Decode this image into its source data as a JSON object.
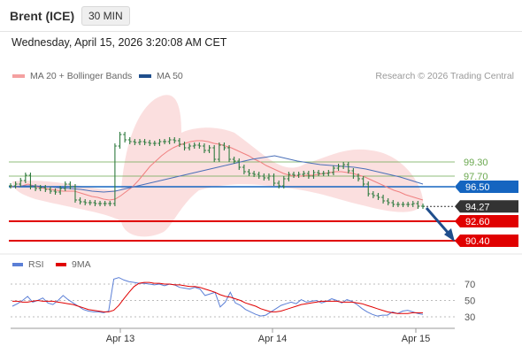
{
  "header": {
    "instrument": "Brent (ICE)",
    "timeframe": "30 MIN"
  },
  "datetime": "Wednesday, April 15, 2026 3:20:08 AM CET",
  "legend": {
    "ma20": "MA 20 + Bollinger Bands",
    "ma50": "MA 50",
    "ma20_color": "#f08080",
    "ma50_color": "#1f4e8c",
    "credit": "Research © 2026 Trading Central"
  },
  "rsi_legend": {
    "rsi": "RSI",
    "ma": "9MA",
    "rsi_color": "#5b7fd6",
    "ma_color": "#e00000"
  },
  "chart_data": [
    {
      "type": "line",
      "title": "Brent (ICE) 30 MIN",
      "x_labels": [
        "Apr 13",
        "Apr 14",
        "Apr 15"
      ],
      "ylim": [
        89.6,
        101.4
      ],
      "current_price": {
        "label": "94.27",
        "value": 94.27,
        "color": "#333333"
      },
      "levels": [
        {
          "label": "99.30",
          "value": 99.3,
          "type": "resistance",
          "color": "#6aa84f"
        },
        {
          "label": "97.70",
          "value": 97.7,
          "type": "resistance",
          "color": "#6aa84f"
        },
        {
          "label": "96.50",
          "value": 96.5,
          "type": "pivot",
          "color": "#1565c0"
        },
        {
          "label": "92.60",
          "value": 92.6,
          "type": "support",
          "color": "#e00000"
        },
        {
          "label": "90.40",
          "value": 90.4,
          "type": "support",
          "color": "#e00000"
        }
      ],
      "price": [
        96.6,
        96.8,
        97.2,
        97.8,
        96.5,
        96.3,
        96.4,
        96.2,
        96.0,
        95.9,
        96.3,
        96.8,
        96.5,
        95.0,
        94.8,
        94.7,
        94.7,
        94.6,
        94.6,
        94.6,
        94.6,
        101.1,
        102.4,
        101.8,
        101.6,
        101.5,
        101.6,
        101.5,
        101.4,
        101.4,
        101.6,
        101.6,
        101.8,
        101.7,
        101.3,
        100.9,
        101.1,
        101.2,
        101.1,
        100.6,
        100.9,
        99.6,
        101.2,
        100.9,
        99.6,
        99.4,
        98.7,
        98.2,
        98.0,
        97.9,
        97.7,
        97.5,
        97.7,
        96.9,
        96.6,
        97.4,
        97.9,
        97.8,
        97.9,
        98.0,
        97.7,
        98.1,
        98.0,
        98.0,
        98.1,
        98.6,
        98.8,
        99.0,
        98.3,
        97.7,
        97.4,
        96.8,
        95.7,
        95.5,
        95.3,
        94.9,
        94.7,
        94.5,
        94.5,
        94.5,
        94.5,
        94.6,
        94.3,
        94.3
      ],
      "ma20": [
        96.5,
        96.5,
        96.6,
        96.8,
        96.6,
        96.4,
        96.3,
        96.2,
        96.1,
        96.0,
        96.0,
        96.0,
        95.8,
        95.6,
        95.4,
        95.3,
        95.1,
        95.0,
        95.1,
        95.5,
        96.0,
        96.5,
        97.2,
        98.0,
        98.8,
        99.4,
        100.0,
        100.5,
        100.9,
        101.2,
        101.4,
        101.6,
        101.7,
        101.7,
        101.6,
        101.4,
        101.3,
        101.1,
        100.9,
        100.6,
        100.3,
        100.0,
        99.6,
        99.3,
        98.9,
        98.6,
        98.3,
        98.0,
        97.8,
        97.7,
        97.7,
        97.8,
        97.8,
        97.9,
        98.0,
        98.1,
        98.2,
        98.2,
        98.1,
        98.0,
        97.8,
        97.6,
        97.3,
        97.0,
        96.7,
        96.4,
        96.1,
        95.9,
        95.6,
        95.4,
        95.2,
        95.0
      ],
      "ma50": [
        96.5,
        96.6,
        96.6,
        96.5,
        96.4,
        96.3,
        96.2,
        96.0,
        95.9,
        96.0,
        96.3,
        96.6,
        96.9,
        97.2,
        97.5,
        97.8,
        98.1,
        98.4,
        98.7,
        99.0,
        99.3,
        99.6,
        99.8,
        100.0,
        99.7,
        99.4,
        99.2,
        99.0,
        98.9,
        98.8,
        98.7,
        98.5,
        98.2,
        97.9,
        97.6,
        97.2,
        96.8
      ]
    },
    {
      "type": "line",
      "title": "RSI",
      "yticks": [
        30,
        50,
        70
      ],
      "ylim": [
        25,
        80
      ],
      "rsi": [
        43,
        46,
        50,
        55,
        48,
        50,
        53,
        47,
        45,
        50,
        56,
        51,
        47,
        43,
        39,
        37,
        36,
        36,
        35,
        37,
        76,
        78,
        75,
        73,
        72,
        71,
        71,
        70,
        69,
        70,
        68,
        70,
        69,
        66,
        65,
        64,
        66,
        64,
        56,
        58,
        60,
        42,
        48,
        60,
        47,
        44,
        39,
        36,
        33,
        31,
        32,
        36,
        40,
        44,
        46,
        48,
        46,
        51,
        48,
        49,
        50,
        47,
        49,
        52,
        50,
        47,
        51,
        49,
        45,
        40,
        36,
        33,
        31,
        32,
        32,
        36,
        34,
        37,
        38,
        36,
        34,
        33
      ],
      "ma9": [
        49,
        49,
        48,
        48,
        49,
        50,
        49,
        49,
        49,
        48,
        47,
        46,
        45,
        43,
        41,
        39,
        38,
        37,
        36,
        36,
        38,
        44,
        52,
        60,
        67,
        71,
        72,
        72,
        71,
        71,
        70,
        70,
        69,
        69,
        68,
        67,
        67,
        66,
        64,
        62,
        60,
        57,
        55,
        54,
        52,
        50,
        47,
        45,
        43,
        40,
        38,
        36,
        36,
        37,
        39,
        41,
        43,
        45,
        46,
        47,
        48,
        49,
        49,
        49,
        49,
        48,
        48,
        48,
        47,
        46,
        44,
        42,
        40,
        38,
        36,
        35,
        34,
        34,
        34,
        35,
        35,
        35
      ]
    }
  ]
}
